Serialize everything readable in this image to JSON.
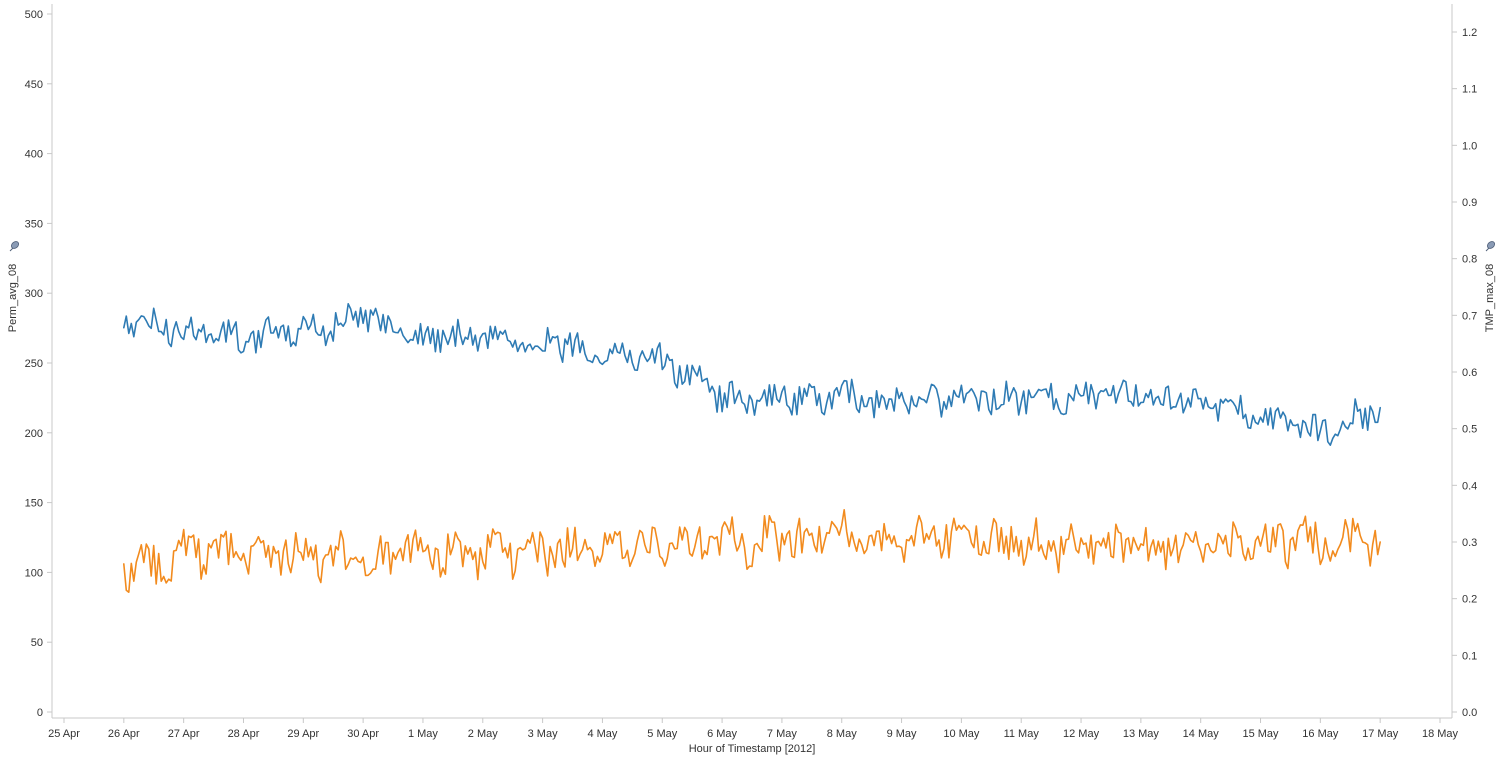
{
  "chart_data": {
    "type": "line",
    "title": "",
    "xlabel": "Hour of Timestamp [2012]",
    "y_left_label": "Perm_avg_08",
    "y_right_label": "TMP_max_08",
    "y_left_ticks": [
      "0",
      "50",
      "100",
      "150",
      "200",
      "250",
      "300",
      "350",
      "400",
      "450",
      "500"
    ],
    "y_right_ticks": [
      "0.0",
      "0.1",
      "0.2",
      "0.3",
      "0.4",
      "0.5",
      "0.6",
      "0.7",
      "0.8",
      "0.9",
      "1.0",
      "1.1",
      "1.2"
    ],
    "y_left_range": [
      0,
      500
    ],
    "y_right_range": [
      0,
      1.2
    ],
    "x_ticks": [
      "25 Apr",
      "26 Apr",
      "27 Apr",
      "28 Apr",
      "29 Apr",
      "30 Apr",
      "1 May",
      "2 May",
      "3 May",
      "4 May",
      "5 May",
      "6 May",
      "7 May",
      "8 May",
      "9 May",
      "10 May",
      "11 May",
      "12 May",
      "13 May",
      "14 May",
      "15 May",
      "16 May",
      "17 May",
      "18 May"
    ],
    "x_range": [
      "2012-04-25",
      "2012-05-18"
    ],
    "grid": false,
    "series": [
      {
        "name": "Perm_avg_08",
        "axis": "left",
        "color": "#2e7bb4",
        "x": [
          "2012-04-26",
          "2012-04-27",
          "2012-04-28",
          "2012-04-29",
          "2012-04-30",
          "2012-05-01",
          "2012-05-02",
          "2012-05-03",
          "2012-05-04",
          "2012-05-05",
          "2012-05-06",
          "2012-05-07",
          "2012-05-08",
          "2012-05-09",
          "2012-05-10",
          "2012-05-11",
          "2012-05-12",
          "2012-05-13",
          "2012-05-14",
          "2012-05-15",
          "2012-05-16",
          "2012-05-17"
        ],
        "y": [
          280,
          273,
          268,
          272,
          283,
          268,
          270,
          265,
          258,
          252,
          225,
          225,
          225,
          222,
          223,
          225,
          227,
          229,
          222,
          210,
          200,
          218
        ]
      },
      {
        "name": "TMP_max_08",
        "axis": "right",
        "color": "#f28b1e",
        "x": [
          "2012-04-26",
          "2012-04-27",
          "2012-04-28",
          "2012-04-29",
          "2012-04-30",
          "2012-05-01",
          "2012-05-02",
          "2012-05-03",
          "2012-05-04",
          "2012-05-05",
          "2012-05-06",
          "2012-05-07",
          "2012-05-08",
          "2012-05-09",
          "2012-05-10",
          "2012-05-11",
          "2012-05-12",
          "2012-05-13",
          "2012-05-14",
          "2012-05-15",
          "2012-05-16",
          "2012-05-17"
        ],
        "y": [
          0.24,
          0.28,
          0.28,
          0.28,
          0.27,
          0.28,
          0.28,
          0.28,
          0.28,
          0.29,
          0.3,
          0.3,
          0.31,
          0.3,
          0.31,
          0.3,
          0.29,
          0.29,
          0.29,
          0.3,
          0.3,
          0.3
        ]
      }
    ]
  }
}
